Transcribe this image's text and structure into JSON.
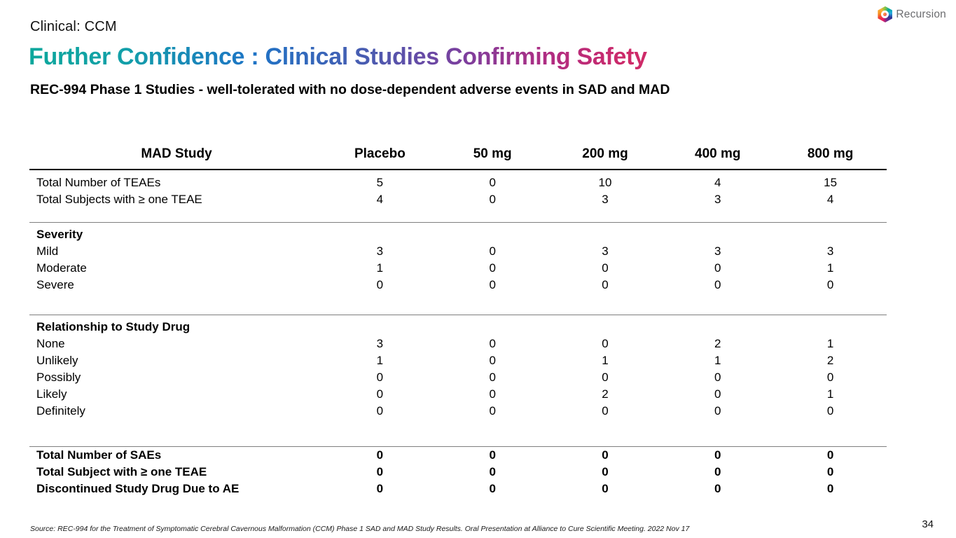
{
  "slide": {
    "eyebrow": "Clinical: CCM",
    "title": "Further Confidence : Clinical Studies Confirming Safety",
    "subtitle": "REC-994 Phase 1 Studies - well-tolerated with no dose-dependent adverse events in SAD and MAD",
    "source": "Source: REC-994 for the Treatment of Symptomatic Cerebral Cavernous Malformation (CCM) Phase 1 SAD and MAD Study Results. Oral Presentation at Alliance to Cure Scientific Meeting. 2022 Nov 17",
    "page_number": "34"
  },
  "logo": {
    "text": "Recursion",
    "icon": "recursion-hexagon-icon"
  },
  "title_gradient_colors": [
    "#0CA79C",
    "#1E74C6",
    "#7B3F9E",
    "#CE2A68"
  ],
  "table": {
    "columns": [
      "MAD Study",
      "Placebo",
      "50 mg",
      "200 mg",
      "400 mg",
      "800 mg"
    ],
    "sections": [
      {
        "rows": [
          {
            "label": "Total Number of TEAEs",
            "bold": false,
            "values": [
              "5",
              "0",
              "10",
              "4",
              "15"
            ]
          },
          {
            "label": "Total Subjects with ≥ one TEAE",
            "bold": false,
            "values": [
              "4",
              "0",
              "3",
              "3",
              "4"
            ]
          }
        ]
      },
      {
        "header": "Severity",
        "rows": [
          {
            "label": "Mild",
            "bold": false,
            "values": [
              "3",
              "0",
              "3",
              "3",
              "3"
            ]
          },
          {
            "label": "Moderate",
            "bold": false,
            "values": [
              "1",
              "0",
              "0",
              "0",
              "1"
            ]
          },
          {
            "label": "Severe",
            "bold": false,
            "values": [
              "0",
              "0",
              "0",
              "0",
              "0"
            ]
          }
        ]
      },
      {
        "header": "Relationship to Study Drug",
        "rows": [
          {
            "label": "None",
            "bold": false,
            "values": [
              "3",
              "0",
              "0",
              "2",
              "1"
            ]
          },
          {
            "label": "Unlikely",
            "bold": false,
            "values": [
              "1",
              "0",
              "1",
              "1",
              "2"
            ]
          },
          {
            "label": "Possibly",
            "bold": false,
            "values": [
              "0",
              "0",
              "0",
              "0",
              "0"
            ]
          },
          {
            "label": "Likely",
            "bold": false,
            "values": [
              "0",
              "0",
              "2",
              "0",
              "1"
            ]
          },
          {
            "label": "Definitely",
            "bold": false,
            "values": [
              "0",
              "0",
              "0",
              "0",
              "0"
            ]
          }
        ]
      },
      {
        "rows": [
          {
            "label": "Total Number of SAEs",
            "bold": true,
            "values": [
              "0",
              "0",
              "0",
              "0",
              "0"
            ]
          },
          {
            "label": "Total Subject with ≥ one TEAE",
            "bold": true,
            "values": [
              "0",
              "0",
              "0",
              "0",
              "0"
            ]
          },
          {
            "label": "Discontinued Study Drug Due to AE",
            "bold": true,
            "values": [
              "0",
              "0",
              "0",
              "0",
              "0"
            ]
          }
        ]
      }
    ]
  }
}
